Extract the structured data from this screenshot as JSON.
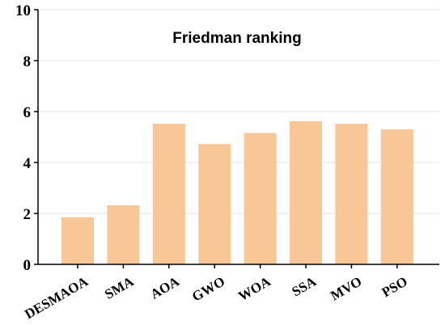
{
  "chart_data": {
    "type": "bar",
    "title": "Friedman ranking",
    "categories": [
      "DESMAOA",
      "SMA",
      "AOA",
      "GWO",
      "WOA",
      "SSA",
      "MVO",
      "PSO"
    ],
    "values": [
      1.85,
      2.32,
      5.52,
      4.72,
      5.16,
      5.62,
      5.52,
      5.3
    ],
    "xlabel": "",
    "ylabel": "",
    "ylim": [
      0,
      10
    ],
    "yticks": [
      "0",
      "2",
      "4",
      "6",
      "8",
      "10"
    ],
    "grid": true,
    "legend": "none",
    "bar_color": "#f9c695",
    "grid_color": "#e6e6e6",
    "axis_color": "#000000"
  }
}
